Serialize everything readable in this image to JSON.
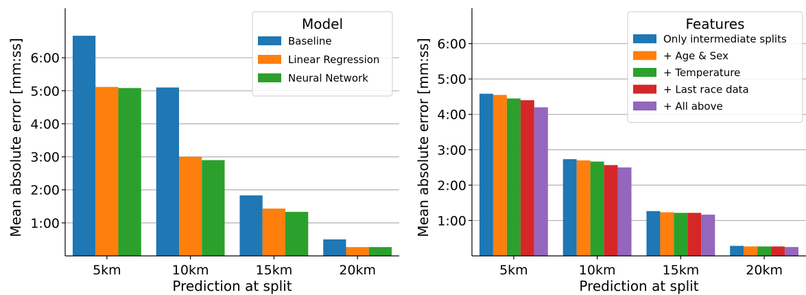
{
  "chart_data": [
    {
      "type": "bar",
      "title": "",
      "xlabel": "Prediction at split",
      "ylabel": "Mean absolute error [mm:ss]",
      "categories": [
        "5km",
        "10km",
        "15km",
        "20km"
      ],
      "ylim": [
        0,
        450
      ],
      "yticks": [
        60,
        120,
        180,
        240,
        300,
        360
      ],
      "ytick_labels": [
        "1:00",
        "2:00",
        "3:00",
        "4:00",
        "5:00",
        "6:00"
      ],
      "grid": "y",
      "legend": {
        "title": "Model",
        "placement": "top-right"
      },
      "series": [
        {
          "name": "Baseline",
          "color": "#1f77b4",
          "values": [
            400,
            306,
            110,
            30
          ]
        },
        {
          "name": "Linear Regression",
          "color": "#ff7f0e",
          "values": [
            307,
            180,
            86,
            16
          ]
        },
        {
          "name": "Neural Network",
          "color": "#2ca02c",
          "values": [
            305,
            174,
            80,
            16
          ]
        }
      ]
    },
    {
      "type": "bar",
      "title": "",
      "xlabel": "Prediction at split",
      "ylabel": "Mean absolute error [mm:ss]",
      "categories": [
        "5km",
        "10km",
        "15km",
        "20km"
      ],
      "ylim": [
        0,
        420
      ],
      "yticks": [
        60,
        120,
        180,
        240,
        300,
        360
      ],
      "ytick_labels": [
        "1:00",
        "2:00",
        "3:00",
        "4:00",
        "5:00",
        "6:00"
      ],
      "grid": "y",
      "legend": {
        "title": "Features",
        "placement": "top-right"
      },
      "series": [
        {
          "name": "Only intermediate splits",
          "color": "#1f77b4",
          "values": [
            275,
            164,
            76,
            17
          ]
        },
        {
          "name": "+ Age & Sex",
          "color": "#ff7f0e",
          "values": [
            273,
            162,
            74,
            16
          ]
        },
        {
          "name": "+ Temperature",
          "color": "#2ca02c",
          "values": [
            267,
            160,
            73,
            16
          ]
        },
        {
          "name": "+ Last race data",
          "color": "#d62728",
          "values": [
            264,
            154,
            73,
            16
          ]
        },
        {
          "name": "+ All above",
          "color": "#9467bd",
          "values": [
            252,
            150,
            70,
            15
          ]
        }
      ]
    }
  ]
}
